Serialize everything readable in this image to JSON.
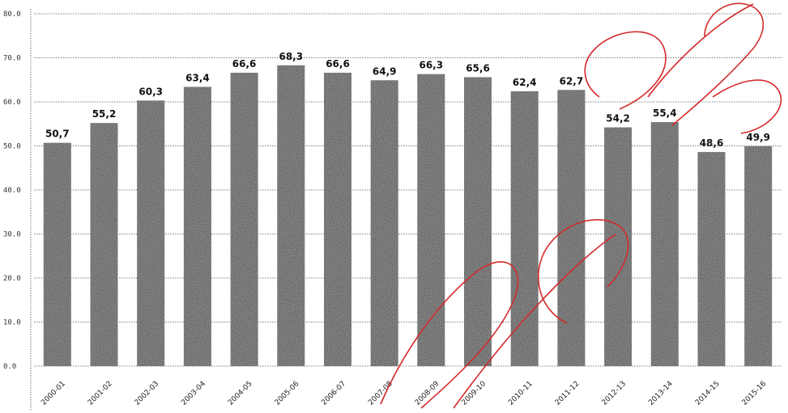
{
  "chart_data": {
    "type": "bar",
    "categories": [
      "2000-01",
      "2001-02",
      "2002-03",
      "2003-04",
      "2004-05",
      "2005-06",
      "2006-07",
      "2007-08",
      "2008-09",
      "2009-10",
      "2010-11",
      "2011-12",
      "2012-13",
      "2013-14",
      "2014-15",
      "2015-16"
    ],
    "values": [
      50.7,
      55.2,
      60.3,
      63.4,
      66.6,
      68.3,
      66.6,
      64.9,
      66.3,
      65.6,
      62.4,
      62.7,
      54.2,
      55.4,
      48.6,
      49.9
    ],
    "data_labels": [
      "50,7",
      "55,2",
      "60,3",
      "63,4",
      "66,6",
      "68,3",
      "66,6",
      "64,9",
      "66,3",
      "65,6",
      "62,4",
      "62,7",
      "54,2",
      "55,4",
      "48,6",
      "49,9"
    ],
    "yticks": [
      "0.0",
      "10.0",
      "20.0",
      "30.0",
      "40.0",
      "50.0",
      "60.0",
      "70.0",
      "80.0"
    ],
    "ylim": [
      0,
      80
    ],
    "title": "",
    "xlabel": "",
    "ylabel": "",
    "grid": true,
    "bar_color": "#3a3a3a",
    "watermark_color": "#d42a2a"
  }
}
